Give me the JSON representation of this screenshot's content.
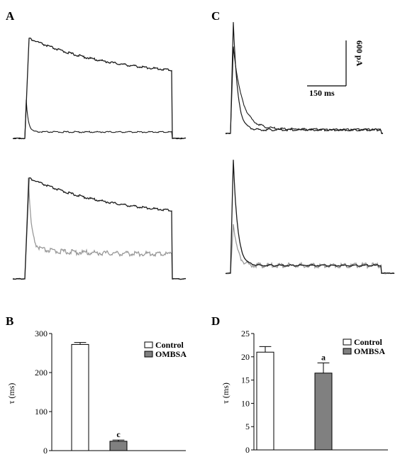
{
  "panels": {
    "A": {
      "label": "A"
    },
    "B": {
      "label": "B"
    },
    "C": {
      "label": "C"
    },
    "D": {
      "label": "D"
    }
  },
  "scale_bar": {
    "current": "600 pA",
    "time": "150 ms"
  },
  "colors": {
    "control": "#ffffff",
    "ombsa": "#808080",
    "trace_dark": "#1a1a1a",
    "trace_gray": "#999999"
  },
  "chart_data": [
    {
      "panel": "A",
      "type": "line",
      "description_hidden": true,
      "series": [
        {
          "name": "",
          "trace": "slow-decay",
          "x": [
            0,
            30,
            100,
            200,
            300,
            400,
            500,
            600
          ],
          "y": [
            0,
            1.0,
            0.94,
            0.85,
            0.76,
            0.69,
            0.62,
            0.55
          ]
        },
        {
          "name": "",
          "trace": "fast-decay",
          "x": [
            0,
            5,
            30,
            100,
            300,
            600
          ],
          "y": [
            0,
            1.0,
            0.16,
            0.1,
            0.08,
            0.07
          ]
        }
      ]
    },
    {
      "panel": "A-lower",
      "type": "line",
      "series": [
        {
          "name": "",
          "trace": "slow-decay",
          "x": [
            0,
            30,
            100,
            200,
            300,
            400,
            500,
            600
          ],
          "y": [
            0,
            1.0,
            0.94,
            0.85,
            0.76,
            0.69,
            0.62,
            0.55
          ]
        },
        {
          "name": "",
          "trace": "fast-decay-scaled",
          "x": [
            0,
            8,
            30,
            100,
            300,
            600
          ],
          "y": [
            0,
            0.98,
            0.38,
            0.26,
            0.24,
            0.22
          ]
        }
      ]
    },
    {
      "panel": "C",
      "type": "line",
      "series": [
        {
          "name": "",
          "trace": "fast-peak",
          "x": [
            0,
            4,
            20,
            60,
            150,
            400
          ],
          "y": [
            0,
            1.0,
            0.5,
            0.15,
            0.05,
            0.04
          ]
        },
        {
          "name": "",
          "trace": "slower-peak",
          "x": [
            0,
            4,
            20,
            60,
            150,
            400
          ],
          "y": [
            0,
            1.0,
            0.55,
            0.2,
            0.06,
            0.04
          ]
        }
      ]
    },
    {
      "panel": "B",
      "type": "bar",
      "title": "",
      "categories": [
        "Control",
        "OMBSA"
      ],
      "values": [
        272,
        24
      ],
      "errors": [
        5,
        3
      ],
      "annotations": [
        "",
        "c"
      ],
      "ylabel": "τ (ms)",
      "ylim": [
        0,
        300
      ],
      "yticks": [
        "0",
        "100",
        "200",
        "300"
      ],
      "legend": {
        "entries": [
          "Control",
          "OMBSA"
        ],
        "placement": "top-right"
      }
    },
    {
      "panel": "D",
      "type": "bar",
      "title": "",
      "categories": [
        "Control",
        "OMBSA"
      ],
      "values": [
        21,
        16.5
      ],
      "errors": [
        1.2,
        2.2
      ],
      "annotations": [
        "",
        "a"
      ],
      "ylabel": "τ (ms)",
      "ylim": [
        0,
        25
      ],
      "yticks": [
        "0",
        "5",
        "10",
        "15",
        "20",
        "25"
      ],
      "legend": {
        "entries": [
          "Control",
          "OMBSA"
        ],
        "placement": "top-right"
      }
    }
  ]
}
